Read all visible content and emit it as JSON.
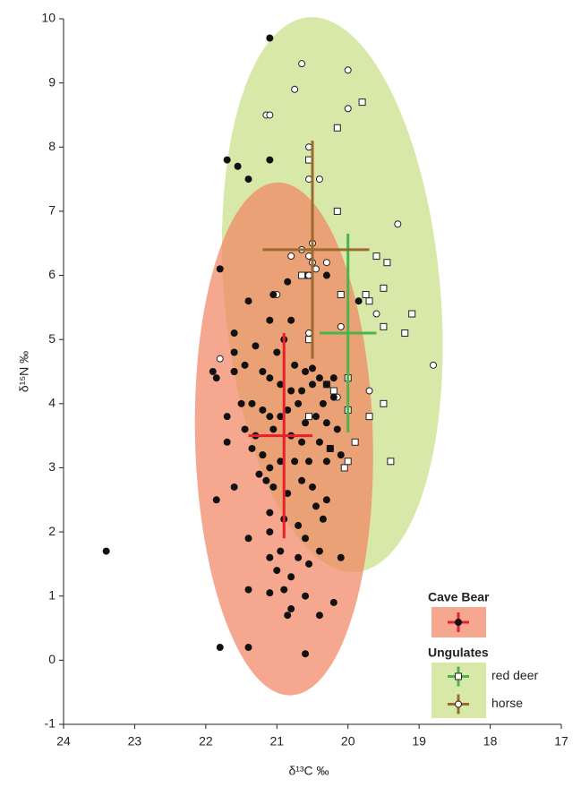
{
  "chart_data": {
    "type": "scatter",
    "xlabel": "δ¹³C ‰",
    "ylabel": "δ¹⁵N ‰",
    "xlim": [
      24,
      17
    ],
    "ylim": [
      -1,
      10
    ],
    "xticks": [
      24,
      23,
      22,
      21,
      20,
      19,
      18,
      17
    ],
    "yticks": [
      -1,
      0,
      1,
      2,
      3,
      4,
      5,
      6,
      7,
      8,
      9,
      10
    ],
    "groups": [
      {
        "name": "Ungulates",
        "color": "#d7e8a9",
        "ellipse": {
          "center": [
            20.22,
            5.7
          ],
          "semi_x": 1.52,
          "semi_y": 4.34,
          "rotation": -5
        },
        "series": [
          {
            "name": "red deer",
            "marker": "square",
            "cross_color": "#4bb54a",
            "x": [
              19.8,
              20.15,
              20.55,
              20.15,
              19.6,
              19.45,
              19.5,
              19.75,
              19.7,
              19.1,
              19.5,
              19.2,
              20.55,
              20.1,
              20.65,
              20.55,
              20.0,
              20.3,
              20.0,
              19.7,
              19.5,
              20.55,
              20.25,
              19.9,
              20.0,
              20.05,
              19.4,
              20.2
            ],
            "y": [
              8.7,
              8.3,
              7.8,
              7.0,
              6.3,
              6.2,
              5.8,
              5.7,
              5.6,
              5.4,
              5.2,
              5.1,
              5.0,
              5.7,
              6.0,
              6.0,
              4.4,
              4.3,
              3.9,
              3.8,
              4.0,
              3.8,
              3.3,
              3.4,
              3.1,
              3.0,
              3.1,
              4.2
            ],
            "mean": {
              "x": 20.0,
              "y": 5.1,
              "x_range": [
                20.4,
                19.6
              ],
              "y_range": [
                3.55,
                6.65
              ]
            }
          },
          {
            "name": "horse",
            "marker": "circle",
            "cross_color": "#9c6a2e",
            "x": [
              20.65,
              20.0,
              20.75,
              21.15,
              21.1,
              20.0,
              20.55,
              20.4,
              20.55,
              19.3,
              20.5,
              20.65,
              20.55,
              20.5,
              20.8,
              20.45,
              20.3,
              20.55,
              21.0,
              19.6,
              20.55,
              20.1,
              19.7,
              18.8,
              21.8,
              21.6,
              21.2,
              20.15
            ],
            "y": [
              9.3,
              9.2,
              8.9,
              8.5,
              8.5,
              8.6,
              8.0,
              7.5,
              7.5,
              6.8,
              6.5,
              6.4,
              6.3,
              6.2,
              6.3,
              6.1,
              6.2,
              6.0,
              5.7,
              5.4,
              5.1,
              5.2,
              4.2,
              4.6,
              4.7,
              4.5,
              3.2,
              4.1
            ],
            "mean": {
              "x": 20.5,
              "y": 6.4,
              "x_range": [
                21.2,
                19.7
              ],
              "y_range": [
                4.7,
                8.1
              ]
            }
          }
        ]
      },
      {
        "name": "Cave Bear",
        "color": "#f1835f",
        "ellipse": {
          "center": [
            20.9,
            3.45
          ],
          "semi_x": 1.25,
          "semi_y": 4.0,
          "rotation": -1.5
        },
        "series": [
          {
            "marker": "dot",
            "cross_color": "#e8202a",
            "x": [
              21.1,
              21.7,
              21.55,
              21.1,
              21.4,
              21.8,
              21.4,
              21.05,
              20.85,
              20.8,
              20.3,
              21.1,
              21.6,
              21.6,
              21.3,
              21.0,
              20.9,
              20.75,
              20.6,
              20.5,
              20.4,
              20.3,
              20.2,
              21.9,
              21.85,
              21.6,
              21.45,
              21.2,
              21.1,
              20.95,
              20.8,
              20.65,
              20.5,
              20.35,
              20.2,
              21.5,
              21.35,
              21.2,
              21.1,
              20.95,
              20.85,
              20.7,
              20.6,
              20.45,
              20.3,
              20.15,
              21.7,
              21.45,
              21.3,
              21.05,
              20.8,
              20.65,
              20.4,
              20.25,
              20.1,
              21.35,
              21.2,
              21.1,
              20.95,
              20.75,
              20.55,
              20.3,
              21.25,
              21.15,
              21.05,
              20.85,
              20.65,
              20.5,
              20.3,
              21.7,
              21.6,
              21.85,
              21.1,
              20.9,
              20.7,
              20.45,
              20.35,
              21.1,
              20.6,
              20.4,
              21.4,
              21.1,
              20.95,
              20.7,
              20.55,
              20.1,
              21.0,
              20.8,
              21.4,
              21.1,
              20.9,
              20.8,
              20.85,
              20.4,
              20.2,
              20.6,
              21.8,
              21.4,
              20.6,
              23.4,
              19.85
            ],
            "y": [
              9.7,
              7.8,
              7.7,
              7.8,
              7.5,
              6.1,
              5.6,
              5.7,
              5.9,
              5.3,
              6.0,
              5.3,
              5.1,
              4.8,
              4.9,
              4.8,
              5.0,
              4.6,
              4.5,
              4.55,
              4.4,
              4.3,
              4.4,
              4.5,
              4.4,
              4.5,
              4.6,
              4.5,
              4.4,
              4.3,
              4.2,
              4.2,
              4.3,
              4.0,
              4.1,
              4.0,
              4.0,
              3.9,
              3.8,
              3.8,
              3.9,
              4.0,
              3.7,
              3.8,
              3.7,
              3.6,
              3.8,
              3.6,
              3.5,
              3.6,
              3.5,
              3.4,
              3.4,
              3.3,
              3.2,
              3.3,
              3.2,
              3.0,
              3.1,
              3.1,
              3.1,
              3.1,
              2.9,
              2.8,
              2.7,
              2.6,
              2.8,
              2.7,
              2.5,
              3.4,
              2.7,
              2.5,
              2.3,
              2.2,
              2.1,
              2.4,
              2.2,
              2.0,
              1.9,
              1.7,
              1.9,
              1.6,
              1.7,
              1.6,
              1.5,
              1.6,
              1.4,
              1.3,
              1.1,
              1.05,
              1.1,
              0.8,
              0.7,
              0.7,
              0.9,
              1.0,
              0.2,
              0.2,
              0.1,
              1.7,
              5.6
            ],
            "mean": {
              "x": 20.9,
              "y": 3.5,
              "x_range": [
                21.4,
                20.5
              ],
              "y_range": [
                1.9,
                5.1
              ]
            }
          }
        ]
      }
    ]
  }
}
